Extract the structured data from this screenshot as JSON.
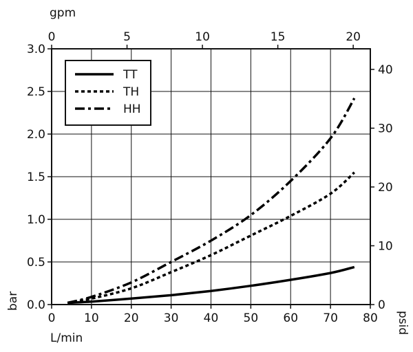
{
  "chart_data": {
    "type": "line",
    "x_label_bottom": "L/min",
    "x_label_top": "gpm",
    "y_label_left": "bar",
    "y_label_right": "psid",
    "x_range": [
      0,
      80
    ],
    "x_ticks": [
      0,
      10,
      20,
      30,
      40,
      50,
      60,
      70,
      80
    ],
    "y_range": [
      0,
      3.0
    ],
    "y_ticks": [
      0.0,
      0.5,
      1.0,
      1.5,
      2.0,
      2.5,
      3.0
    ],
    "y_tick_labels": [
      "0.0",
      "0.5",
      "1.0",
      "1.5",
      "2.0",
      "2.5",
      "3.0"
    ],
    "top_x_range": [
      0,
      21.134
    ],
    "top_x_ticks": [
      0,
      5,
      10,
      15,
      20
    ],
    "right_y_range": [
      0,
      43.5
    ],
    "right_y_ticks": [
      0,
      10,
      20,
      30,
      40
    ],
    "grid": true,
    "legend_position": "top-left",
    "series": [
      {
        "name": "TT",
        "dash": "solid",
        "x": [
          4,
          10,
          20,
          30,
          40,
          50,
          60,
          70,
          76
        ],
        "y": [
          0.02,
          0.035,
          0.07,
          0.11,
          0.16,
          0.22,
          0.29,
          0.37,
          0.44
        ]
      },
      {
        "name": "TH",
        "dash": "dotted",
        "x": [
          4,
          10,
          20,
          30,
          40,
          50,
          60,
          70,
          76
        ],
        "y": [
          0.02,
          0.07,
          0.19,
          0.38,
          0.58,
          0.81,
          1.04,
          1.3,
          1.55
        ]
      },
      {
        "name": "HH",
        "dash": "dashdot",
        "x": [
          4,
          10,
          20,
          30,
          40,
          50,
          60,
          70,
          76
        ],
        "y": [
          0.02,
          0.09,
          0.26,
          0.5,
          0.75,
          1.05,
          1.45,
          1.95,
          2.42
        ]
      }
    ]
  }
}
